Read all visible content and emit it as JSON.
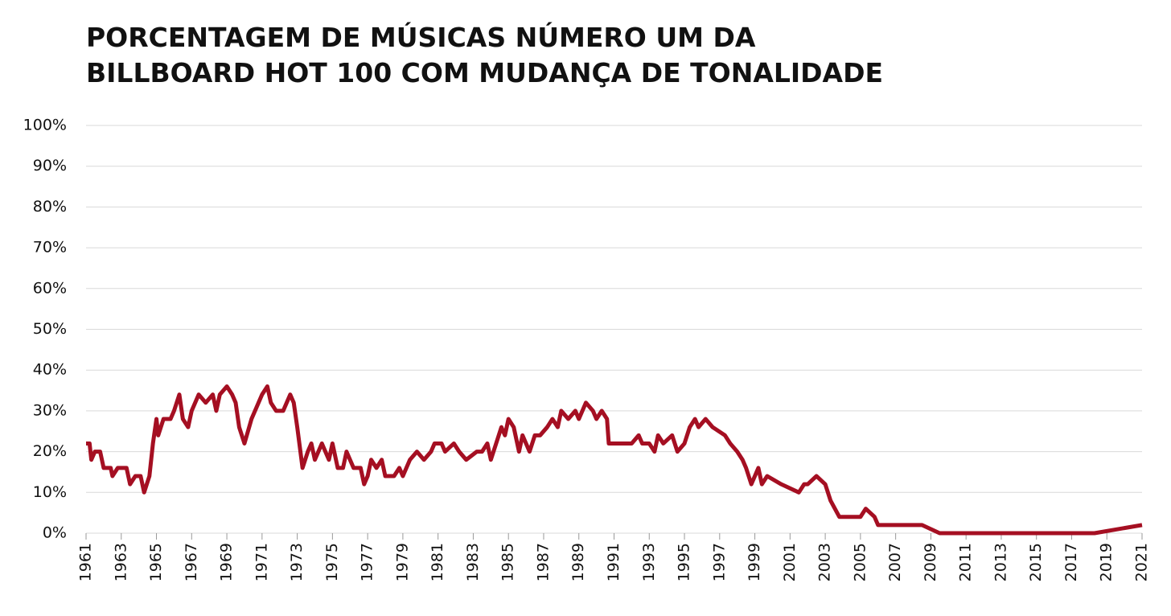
{
  "chart_data": {
    "type": "line",
    "title": [
      "PORCENTAGEM DE MÚSICAS NÚMERO UM DA",
      "BILLBOARD HOT 100 COM MUDANÇA DE TONALIDADE"
    ],
    "x": [
      1961.0,
      1961.2,
      1961.3,
      1961.5,
      1961.8,
      1962.0,
      1962.4,
      1962.5,
      1962.8,
      1963.3,
      1963.5,
      1963.8,
      1964.1,
      1964.3,
      1964.6,
      1964.8,
      1965.0,
      1965.1,
      1965.4,
      1965.8,
      1966.0,
      1966.3,
      1966.5,
      1966.8,
      1967.0,
      1967.4,
      1967.8,
      1968.2,
      1968.4,
      1968.6,
      1969.0,
      1969.3,
      1969.5,
      1969.7,
      1970.0,
      1970.4,
      1970.8,
      1971.0,
      1971.3,
      1971.5,
      1971.8,
      1972.2,
      1972.4,
      1972.6,
      1972.8,
      1973.0,
      1973.3,
      1973.6,
      1973.8,
      1974.0,
      1974.4,
      1974.8,
      1975.0,
      1975.3,
      1975.6,
      1975.8,
      1976.2,
      1976.6,
      1976.8,
      1977.0,
      1977.2,
      1977.5,
      1977.8,
      1978.0,
      1978.5,
      1978.8,
      1979.0,
      1979.4,
      1979.8,
      1980.2,
      1980.6,
      1980.8,
      1981.2,
      1981.4,
      1981.9,
      1982.2,
      1982.6,
      1983.2,
      1983.5,
      1983.8,
      1984.0,
      1984.3,
      1984.6,
      1984.8,
      1985.0,
      1985.3,
      1985.6,
      1985.8,
      1986.2,
      1986.5,
      1986.8,
      1987.2,
      1987.5,
      1987.8,
      1988.0,
      1988.4,
      1988.8,
      1989.0,
      1989.4,
      1989.8,
      1990.0,
      1990.3,
      1990.6,
      1990.7,
      1991.5,
      1992.0,
      1992.4,
      1992.6,
      1993.0,
      1993.3,
      1993.5,
      1993.8,
      1994.3,
      1994.6,
      1995.0,
      1995.3,
      1995.6,
      1995.8,
      1996.2,
      1996.6,
      1997.3,
      1997.6,
      1998.0,
      1998.3,
      1998.5,
      1998.8,
      1999.2,
      1999.4,
      1999.7,
      2000.5,
      2001.5,
      2001.8,
      2002.0,
      2002.5,
      2003.0,
      2003.3,
      2003.8,
      2005.0,
      2005.3,
      2005.8,
      2006.0,
      2008.5,
      2009.5,
      2018.3,
      2021.0
    ],
    "series": [
      {
        "name": "Mudança de tonalidade",
        "color": "#a50f22",
        "values": [
          22,
          22,
          18,
          20,
          20,
          16,
          16,
          14,
          16,
          16,
          12,
          14,
          14,
          10,
          14,
          22,
          28,
          24,
          28,
          28,
          30,
          34,
          28,
          26,
          30,
          34,
          32,
          34,
          30,
          34,
          36,
          34,
          32,
          26,
          22,
          28,
          32,
          34,
          36,
          32,
          30,
          30,
          32,
          34,
          32,
          26,
          16,
          20,
          22,
          18,
          22,
          18,
          22,
          16,
          16,
          20,
          16,
          16,
          12,
          14,
          18,
          16,
          18,
          14,
          14,
          16,
          14,
          18,
          20,
          18,
          20,
          22,
          22,
          20,
          22,
          20,
          18,
          20,
          20,
          22,
          18,
          22,
          26,
          24,
          28,
          26,
          20,
          24,
          20,
          24,
          24,
          26,
          28,
          26,
          30,
          28,
          30,
          28,
          32,
          30,
          28,
          30,
          28,
          22,
          22,
          22,
          24,
          22,
          22,
          20,
          24,
          22,
          24,
          20,
          22,
          26,
          28,
          26,
          28,
          26,
          24,
          22,
          20,
          18,
          16,
          12,
          16,
          12,
          14,
          12,
          10,
          12,
          12,
          14,
          12,
          8,
          4,
          4,
          6,
          4,
          2,
          2,
          0,
          0,
          2
        ]
      }
    ],
    "xlim": [
      1961,
      2021
    ],
    "ylim": [
      0,
      100
    ],
    "xticks": [
      1961,
      1963,
      1965,
      1967,
      1969,
      1971,
      1973,
      1975,
      1977,
      1979,
      1981,
      1983,
      1985,
      1987,
      1989,
      1991,
      1993,
      1995,
      1997,
      1999,
      2001,
      2003,
      2005,
      2007,
      2009,
      2011,
      2013,
      2015,
      2017,
      2019,
      2021
    ],
    "yticks": [
      {
        "value": 0,
        "label": "0%"
      },
      {
        "value": 10,
        "label": "10%"
      },
      {
        "value": 20,
        "label": "20%"
      },
      {
        "value": 30,
        "label": "30%"
      },
      {
        "value": 40,
        "label": "40%"
      },
      {
        "value": 50,
        "label": "50%"
      },
      {
        "value": 60,
        "label": "60%"
      },
      {
        "value": 70,
        "label": "70%"
      },
      {
        "value": 80,
        "label": "80%"
      },
      {
        "value": 90,
        "label": "90%"
      },
      {
        "value": 100,
        "label": "100%"
      }
    ],
    "grid": true
  }
}
